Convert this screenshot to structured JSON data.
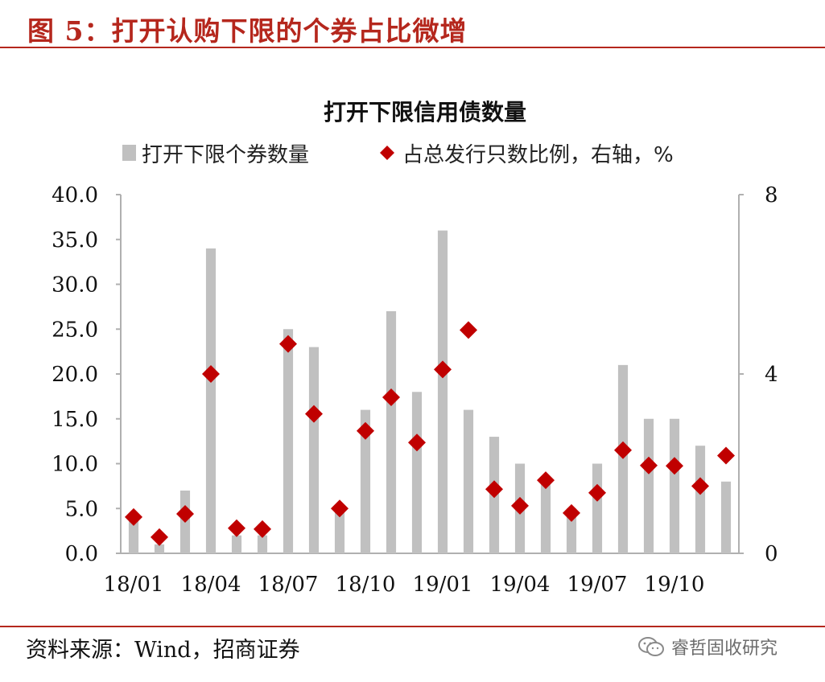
{
  "figure": {
    "title": "图  5：打开认购下限的个券占比微增",
    "source": "资料来源：Wind，招商证券",
    "watermark": "睿哲固收研究"
  },
  "colors": {
    "accent": "#b5271d",
    "bar": "#c0c0c0",
    "marker": "#c00000",
    "axis": "#b0b0b0"
  },
  "chart_data": {
    "type": "bar",
    "title": "打开下限信用债数量",
    "legend_position": "top",
    "grid": false,
    "x": [
      "18/01",
      "18/02",
      "18/03",
      "18/04",
      "18/05",
      "18/06",
      "18/07",
      "18/08",
      "18/09",
      "18/10",
      "18/11",
      "18/12",
      "19/01",
      "19/02",
      "19/03",
      "19/04",
      "19/05",
      "19/06",
      "19/07",
      "19/08",
      "19/09",
      "19/10",
      "19/11",
      "19/12"
    ],
    "x_tick_labels": [
      "18/01",
      "18/04",
      "18/07",
      "18/10",
      "19/01",
      "19/04",
      "19/07",
      "19/10"
    ],
    "series": [
      {
        "name": "打开下限个券数量",
        "type": "bar",
        "axis": "left",
        "values": [
          4,
          1,
          7,
          34,
          2,
          2,
          25,
          23,
          5,
          16,
          27,
          18,
          36,
          16,
          13,
          10,
          8,
          5,
          10,
          21,
          15,
          15,
          12,
          8
        ]
      },
      {
        "name": "占总发行只数比例，右轴，%",
        "type": "scatter",
        "marker": "diamond",
        "axis": "right",
        "values": [
          0.81,
          0.36,
          0.88,
          4.0,
          0.56,
          0.54,
          4.67,
          3.11,
          1.0,
          2.73,
          3.48,
          2.47,
          4.1,
          4.98,
          1.43,
          1.06,
          1.63,
          0.9,
          1.35,
          2.3,
          1.96,
          1.95,
          1.5,
          2.18
        ]
      }
    ],
    "y_left": {
      "ylim": [
        0,
        40
      ],
      "ticks": [
        "0.0",
        "5.0",
        "10.0",
        "15.0",
        "20.0",
        "25.0",
        "30.0",
        "35.0",
        "40.0"
      ]
    },
    "y_right": {
      "ylim": [
        0,
        8
      ],
      "ticks": [
        "0",
        "4",
        "8"
      ]
    }
  }
}
